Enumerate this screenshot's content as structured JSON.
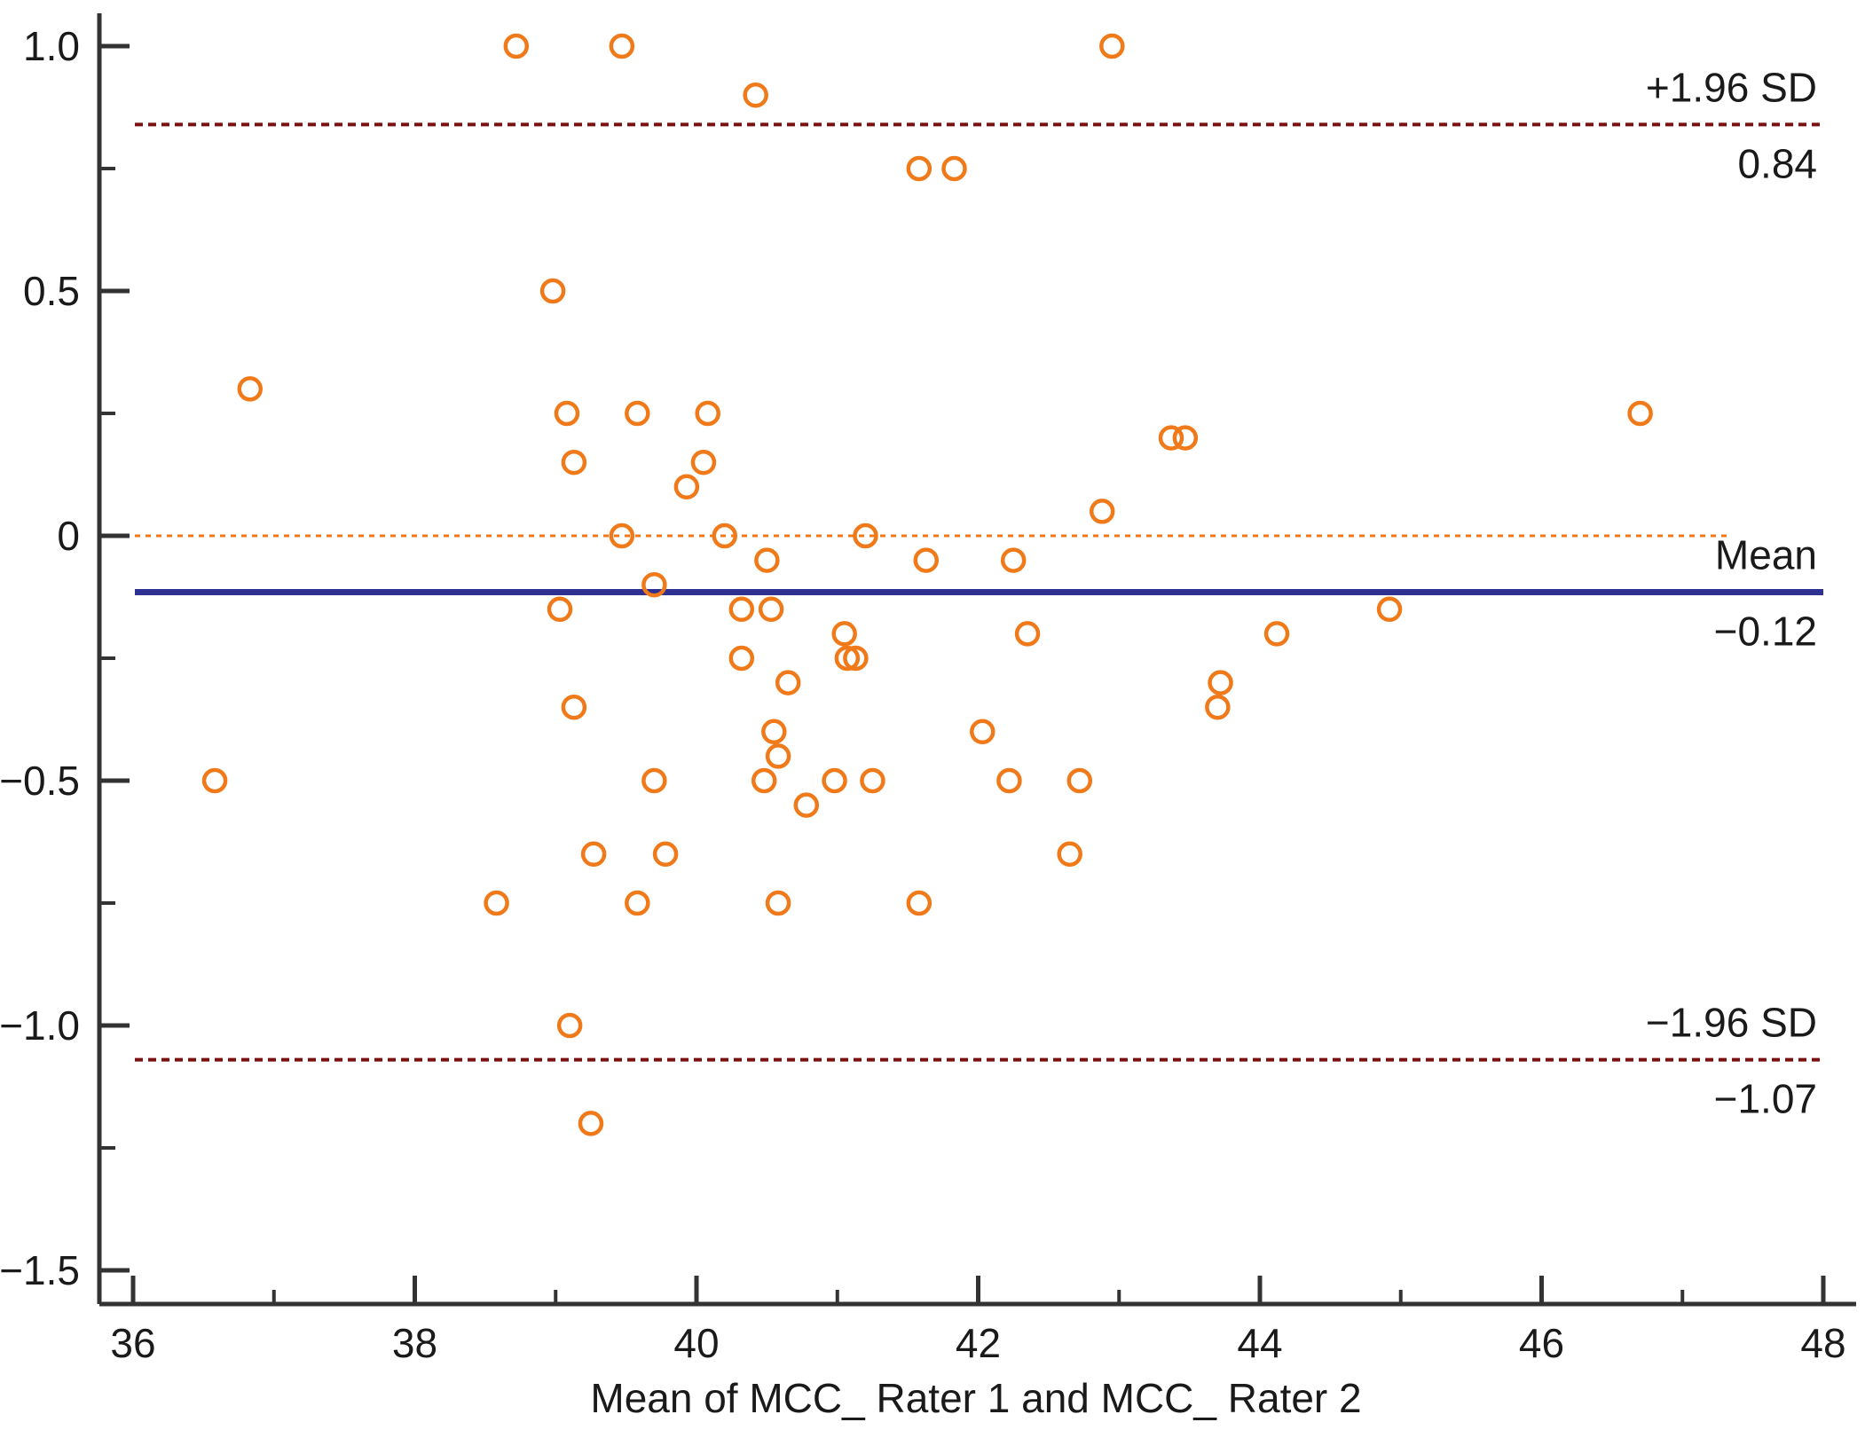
{
  "chart_data": {
    "type": "scatter",
    "title": "",
    "xlabel": "Mean  of  MCC_ Rater 1  and MCC_ Rater 2",
    "ylabel": "",
    "xlim": [
      36,
      48
    ],
    "ylim": [
      -1.5,
      1.0
    ],
    "x_ticks": [
      36,
      38,
      40,
      42,
      44,
      46,
      48
    ],
    "x_tick_labels": [
      "36",
      "38",
      "40",
      "42",
      "44",
      "46",
      "48"
    ],
    "y_ticks": [
      1.0,
      0.5,
      0,
      -0.5,
      -1.0,
      -1.5
    ],
    "y_tick_labels": [
      "1.0",
      "0.5",
      "0",
      "−0.5",
      "−1.0",
      "−1.5"
    ],
    "reference_lines": [
      {
        "name": "upper-loa",
        "value": 0.84,
        "label_top": "+1.96 SD",
        "label_bottom": "0.84",
        "style": "dashed",
        "color": "#7b1010"
      },
      {
        "name": "mean",
        "value": -0.115,
        "label_top": "Mean",
        "label_bottom": "−0.12",
        "style": "solid",
        "color": "#2e3192"
      },
      {
        "name": "lower-loa",
        "value": -1.07,
        "label_top": "−1.96 SD",
        "label_bottom": "−1.07",
        "style": "dashed",
        "color": "#7b1010"
      },
      {
        "name": "zero",
        "value": 0,
        "label_top": "",
        "label_bottom": "",
        "style": "dotted",
        "color": "#f07a1a"
      }
    ],
    "series": [
      {
        "name": "differences",
        "color": "#f07a1a",
        "points": [
          [
            36.58,
            -0.5
          ],
          [
            36.83,
            0.3
          ],
          [
            38.58,
            -0.75
          ],
          [
            38.72,
            1.0
          ],
          [
            38.98,
            0.5
          ],
          [
            39.03,
            -0.15
          ],
          [
            39.08,
            0.25
          ],
          [
            39.1,
            -1.0
          ],
          [
            39.13,
            0.15
          ],
          [
            39.13,
            -0.35
          ],
          [
            39.25,
            -1.2
          ],
          [
            39.27,
            -0.65
          ],
          [
            39.47,
            1.0
          ],
          [
            39.47,
            0.0
          ],
          [
            39.58,
            0.25
          ],
          [
            39.58,
            -0.75
          ],
          [
            39.7,
            -0.1
          ],
          [
            39.7,
            -0.5
          ],
          [
            39.78,
            -0.65
          ],
          [
            39.93,
            0.1
          ],
          [
            40.05,
            0.15
          ],
          [
            40.08,
            0.25
          ],
          [
            40.2,
            0.0
          ],
          [
            40.32,
            -0.15
          ],
          [
            40.32,
            -0.25
          ],
          [
            40.42,
            0.9
          ],
          [
            40.48,
            -0.5
          ],
          [
            40.5,
            -0.05
          ],
          [
            40.53,
            -0.15
          ],
          [
            40.55,
            -0.4
          ],
          [
            40.58,
            -0.45
          ],
          [
            40.58,
            -0.75
          ],
          [
            40.65,
            -0.3
          ],
          [
            40.78,
            -0.55
          ],
          [
            40.98,
            -0.5
          ],
          [
            41.05,
            -0.2
          ],
          [
            41.07,
            -0.25
          ],
          [
            41.13,
            -0.25
          ],
          [
            41.2,
            0.0
          ],
          [
            41.25,
            -0.5
          ],
          [
            41.58,
            0.75
          ],
          [
            41.58,
            -0.75
          ],
          [
            41.63,
            -0.05
          ],
          [
            41.83,
            0.75
          ],
          [
            42.03,
            -0.4
          ],
          [
            42.22,
            -0.5
          ],
          [
            42.25,
            -0.05
          ],
          [
            42.35,
            -0.2
          ],
          [
            42.65,
            -0.65
          ],
          [
            42.72,
            -0.5
          ],
          [
            42.88,
            0.05
          ],
          [
            42.95,
            1.0
          ],
          [
            43.37,
            0.2
          ],
          [
            43.47,
            0.2
          ],
          [
            43.7,
            -0.35
          ],
          [
            43.72,
            -0.3
          ],
          [
            44.12,
            -0.2
          ],
          [
            44.92,
            -0.15
          ],
          [
            46.7,
            0.25
          ]
        ]
      }
    ]
  }
}
